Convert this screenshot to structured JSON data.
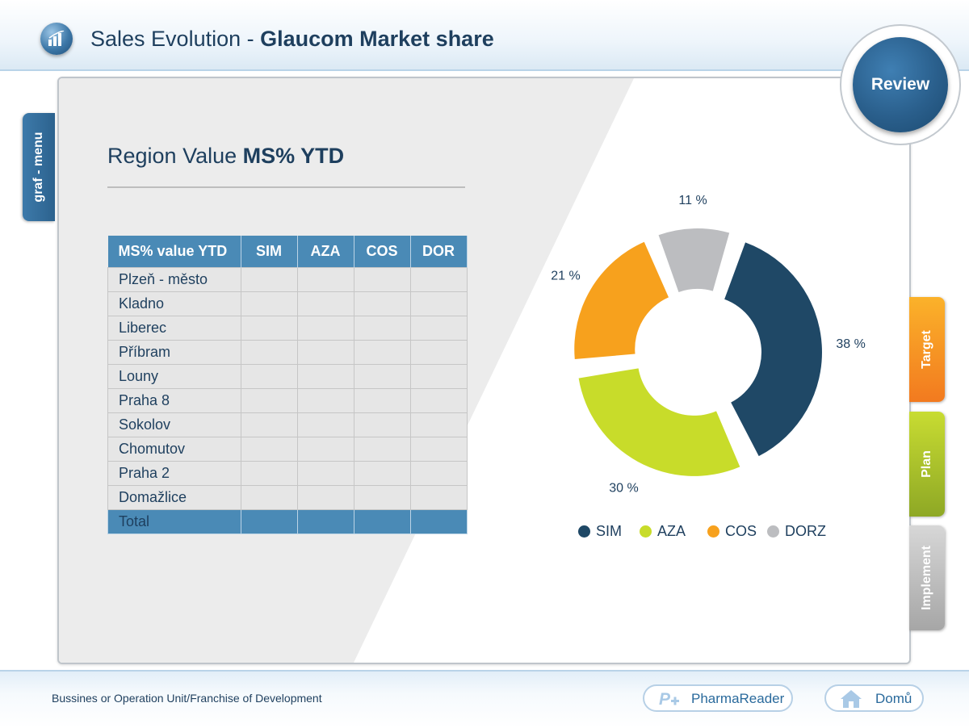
{
  "header": {
    "title_prefix": "Sales Evolution - ",
    "title_bold": "Glaucom Market share",
    "logo_icon": "bar-chart-icon"
  },
  "review_button": {
    "label": "Review"
  },
  "left_tab": {
    "label": "graf - menu"
  },
  "right_tabs": [
    {
      "label": "Target",
      "color": "#f59023"
    },
    {
      "label": "Plan",
      "color": "#a9c22c"
    },
    {
      "label": "Implement",
      "color": "#b9b9b9"
    }
  ],
  "section": {
    "title_prefix": "Region Value ",
    "title_bold": "MS% YTD"
  },
  "table": {
    "headers": [
      "MS% value YTD",
      "SIM",
      "AZA",
      "COS",
      "DOR"
    ],
    "rows": [
      "Plzeň - město",
      "Kladno",
      "Liberec",
      "Příbram",
      "Louny",
      "Praha 8",
      "Sokolov",
      "Chomutov",
      "Praha 2",
      "Domažlice"
    ],
    "total_label": "Total",
    "header_color": "#4a8ab6"
  },
  "chart_data": {
    "type": "pie",
    "donut": true,
    "slices": [
      {
        "name": "SIM",
        "value": 38,
        "label": "38 %",
        "color": "#1f4866"
      },
      {
        "name": "AZA",
        "value": 30,
        "label": "30 %",
        "color": "#c8dc2a"
      },
      {
        "name": "COS",
        "value": 21,
        "label": "21 %",
        "color": "#f7a11d"
      },
      {
        "name": "DORZ",
        "value": 11,
        "label": "11 %",
        "color": "#bcbdc0"
      }
    ],
    "legend_position": "bottom"
  },
  "footer": {
    "text": "Bussines or Operation Unit/Franchise of Development",
    "pharma_label": "PharmaReader",
    "pharma_icon": "pharmareader-logo-icon",
    "home_label": "Domů",
    "home_icon": "home-icon"
  }
}
